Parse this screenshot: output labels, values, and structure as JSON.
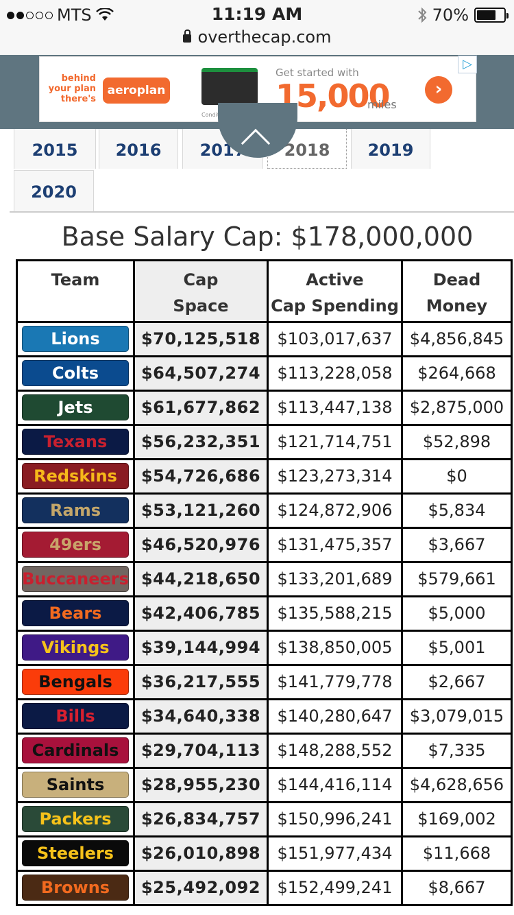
{
  "status_bar": {
    "carrier": "MTS",
    "time": "11:19 AM",
    "battery": "70%",
    "battery_level": 0.7
  },
  "browser": {
    "url": "overthecap.com"
  },
  "ad": {
    "tagline": "behind your plan there's",
    "brand": "aeroplan",
    "headline": "Get started with",
    "amount": "15,000",
    "unit": "miles",
    "fine_print": "Conditions apply."
  },
  "tabs": [
    {
      "label": "2015",
      "active": false
    },
    {
      "label": "2016",
      "active": false
    },
    {
      "label": "2017",
      "active": false
    },
    {
      "label": "2018",
      "active": true
    },
    {
      "label": "2019",
      "active": false
    },
    {
      "label": "2020",
      "active": false
    }
  ],
  "title": "Base Salary Cap: $178,000,000",
  "table": {
    "headers": {
      "team": "Team",
      "cap_space": "Cap\nSpace",
      "active": "Active\nCap Spending",
      "dead": "Dead\nMoney"
    },
    "rows": [
      {
        "team": "Lions",
        "bg": "#1a78b4",
        "fg": "#ffffff",
        "cap": "$70,125,518",
        "active": "$103,017,637",
        "dead": "$4,856,845"
      },
      {
        "team": "Colts",
        "bg": "#0b4b8f",
        "fg": "#ffffff",
        "cap": "$64,507,274",
        "active": "$113,228,058",
        "dead": "$264,668"
      },
      {
        "team": "Jets",
        "bg": "#1f4a32",
        "fg": "#ffffff",
        "cap": "$61,677,862",
        "active": "$113,447,138",
        "dead": "$2,875,000"
      },
      {
        "team": "Texans",
        "bg": "#0b1a45",
        "fg": "#c8202f",
        "cap": "$56,232,351",
        "active": "$121,714,751",
        "dead": "$52,898"
      },
      {
        "team": "Redskins",
        "bg": "#8a1c22",
        "fg": "#f6b81a",
        "cap": "$54,726,686",
        "active": "$123,273,314",
        "dead": "$0"
      },
      {
        "team": "Rams",
        "bg": "#13305e",
        "fg": "#c4a66a",
        "cap": "$53,121,260",
        "active": "$124,872,906",
        "dead": "$5,834"
      },
      {
        "team": "49ers",
        "bg": "#a41b33",
        "fg": "#c9a46a",
        "cap": "$46,520,976",
        "active": "$131,475,357",
        "dead": "$3,667"
      },
      {
        "team": "Buccaneers",
        "bg": "#716661",
        "fg": "#c8202f",
        "cap": "$44,218,650",
        "active": "$133,201,689",
        "dead": "$579,661"
      },
      {
        "team": "Bears",
        "bg": "#0b1a45",
        "fg": "#f26a1f",
        "cap": "$42,406,785",
        "active": "$135,588,215",
        "dead": "$5,000"
      },
      {
        "team": "Vikings",
        "bg": "#3f1a86",
        "fg": "#f6c21a",
        "cap": "$39,144,994",
        "active": "$138,850,005",
        "dead": "$5,001"
      },
      {
        "team": "Bengals",
        "bg": "#fb3c0a",
        "fg": "#111111",
        "cap": "$36,217,555",
        "active": "$141,779,778",
        "dead": "$2,667"
      },
      {
        "team": "Bills",
        "bg": "#0b1a45",
        "fg": "#d8202f",
        "cap": "$34,640,338",
        "active": "$140,280,647",
        "dead": "$3,079,015"
      },
      {
        "team": "Cardinals",
        "bg": "#a8113c",
        "fg": "#111111",
        "cap": "$29,704,113",
        "active": "$148,288,552",
        "dead": "$7,335"
      },
      {
        "team": "Saints",
        "bg": "#c8b07c",
        "fg": "#111111",
        "cap": "$28,955,230",
        "active": "$144,416,114",
        "dead": "$4,628,656"
      },
      {
        "team": "Packers",
        "bg": "#2a4a38",
        "fg": "#f6c21a",
        "cap": "$26,834,757",
        "active": "$150,996,241",
        "dead": "$169,002"
      },
      {
        "team": "Steelers",
        "bg": "#0a0a0a",
        "fg": "#f6c21a",
        "cap": "$26,010,898",
        "active": "$151,977,434",
        "dead": "$11,668"
      },
      {
        "team": "Browns",
        "bg": "#4b2a14",
        "fg": "#f26a1f",
        "cap": "$25,492,092",
        "active": "$152,499,241",
        "dead": "$8,667"
      }
    ]
  }
}
